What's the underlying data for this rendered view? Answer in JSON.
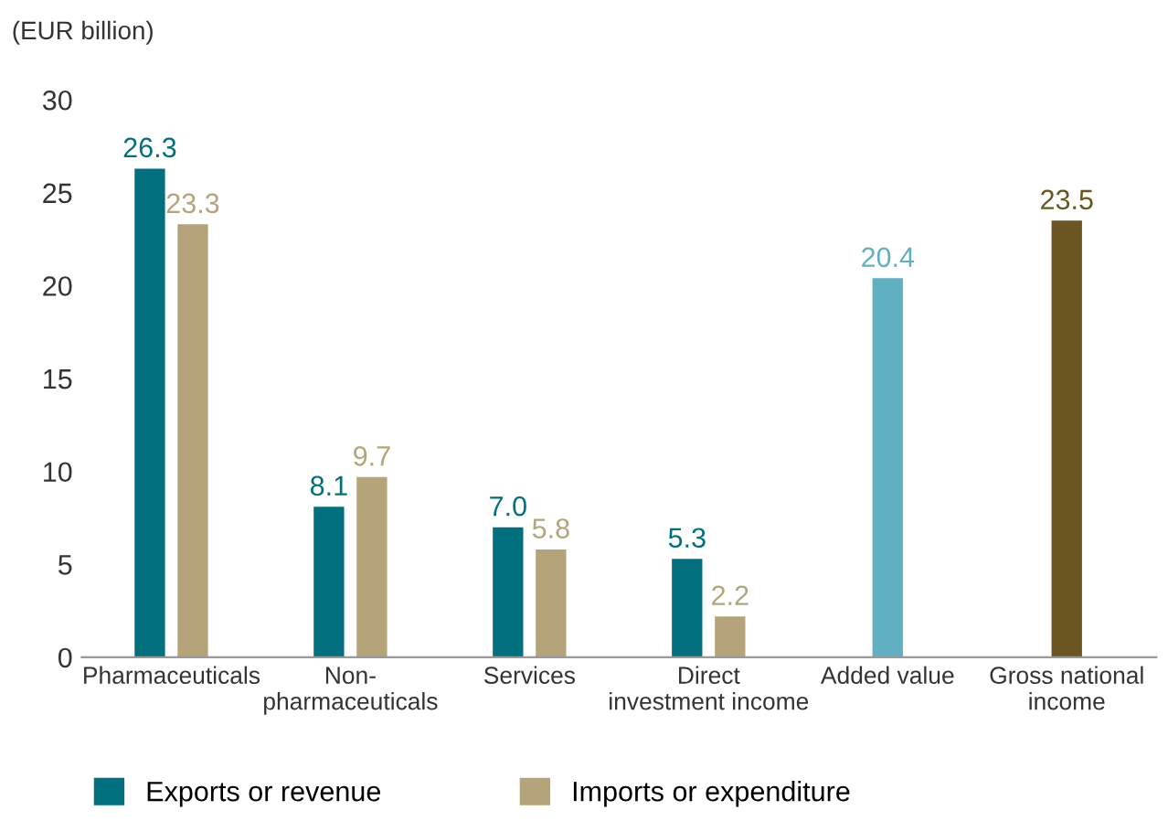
{
  "chart_data": {
    "type": "bar",
    "ylabel": "(EUR billion)",
    "categories": [
      "Pharmaceuticals",
      "Non-\npharmaceuticals",
      "Services",
      "Direct\ninvestment income",
      "Added value",
      "Gross national\nincome"
    ],
    "series": [
      {
        "name": "Exports or revenue",
        "color": "#00707f",
        "values": [
          26.3,
          8.1,
          7.0,
          5.3,
          null,
          null
        ],
        "value_labels": [
          "26.3",
          "8.1",
          "7.0",
          "5.3",
          null,
          null
        ]
      },
      {
        "name": "Imports or expenditure",
        "color": "#b5a47a",
        "values": [
          23.3,
          9.7,
          5.8,
          2.2,
          null,
          null
        ],
        "value_labels": [
          "23.3",
          "9.7",
          "5.8",
          "2.2",
          null,
          null
        ]
      },
      {
        "colors": [
          "#5fb0c0",
          "#5fb0c0",
          "#5fb0c0",
          "#5fb0c0",
          "#5fb0c0",
          "#6b5520"
        ],
        "values": [
          null,
          null,
          null,
          null,
          20.4,
          23.5
        ],
        "value_labels": [
          null,
          null,
          null,
          null,
          "20.4",
          "23.5"
        ]
      }
    ],
    "ylim": [
      0,
      30
    ],
    "yticks": [
      0,
      5,
      10,
      15,
      20,
      25,
      30
    ],
    "grid": false,
    "legend": "bottom"
  }
}
